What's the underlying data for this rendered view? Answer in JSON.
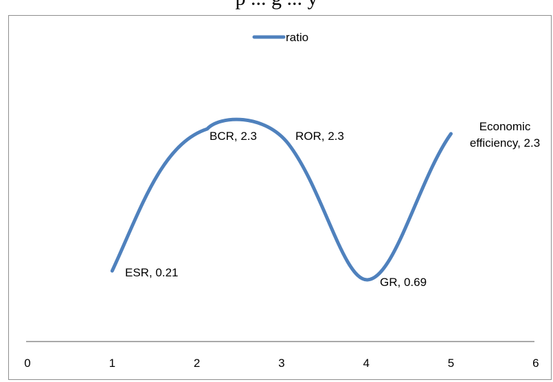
{
  "caption": "p ... g ... y",
  "chart_data": {
    "type": "line",
    "x": [
      1,
      2,
      3,
      4,
      5
    ],
    "series": [
      {
        "name": "ratio",
        "color": "#4f81bd",
        "points": [
          {
            "x": 1,
            "y": 0.21,
            "label": "ESR, 0.21"
          },
          {
            "x": 2,
            "y": 2.3,
            "label": "BCR, 2.3"
          },
          {
            "x": 3,
            "y": 2.3,
            "label": "ROR, 2.3"
          },
          {
            "x": 4,
            "y": 0.69,
            "label": "GR, 0.69"
          },
          {
            "x": 5,
            "y": 2.3,
            "label": "Economic efficiency, 2.3"
          }
        ]
      }
    ],
    "x_ticks": [
      "0",
      "1",
      "2",
      "3",
      "4",
      "5",
      "6"
    ],
    "xlim": [
      0,
      6
    ],
    "smooth": true,
    "legend_position": "top",
    "grid": false,
    "title": "",
    "xlabel": "",
    "ylabel": ""
  }
}
